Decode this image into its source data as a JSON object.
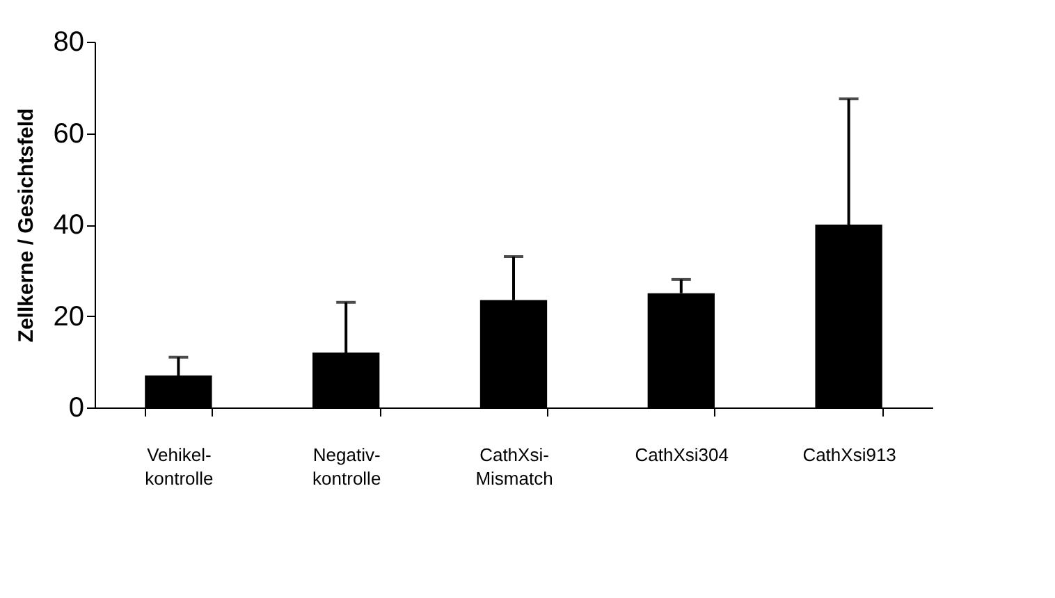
{
  "chart_data": {
    "type": "bar",
    "ylabel": "Zellkerne / Gesichtsfeld",
    "categories": [
      "Vehikel-\nkontrolle",
      "Negativ-\nkontrolle",
      "CathXsi-\nMismatch",
      "CathXsi304",
      "CathXsi913"
    ],
    "values": [
      7,
      12,
      23.5,
      25,
      40
    ],
    "errors": [
      [
        7,
        11
      ],
      [
        12,
        23
      ],
      [
        23.5,
        33
      ],
      [
        25,
        28
      ],
      [
        40,
        67.5
      ]
    ],
    "color": "#000000",
    "ylim": [
      0,
      80
    ],
    "yticks": [
      0,
      20,
      40,
      60,
      80
    ],
    "grid": false
  }
}
